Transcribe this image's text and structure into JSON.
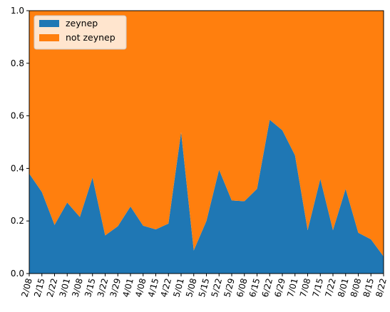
{
  "chart_data": {
    "type": "area",
    "stacked": true,
    "normalized": true,
    "title": "",
    "xlabel": "",
    "ylabel": "",
    "ylim": [
      0,
      1
    ],
    "yticks": [
      "0.0",
      "0.2",
      "0.4",
      "0.6",
      "0.8",
      "1.0"
    ],
    "grid": false,
    "legend_position": "upper left",
    "categories": [
      "2/08",
      "2/15",
      "2/22",
      "3/01",
      "3/08",
      "3/15",
      "3/22",
      "3/29",
      "4/01",
      "4/08",
      "4/15",
      "4/22",
      "5/01",
      "5/08",
      "5/15",
      "5/22",
      "5/29",
      "6/08",
      "6/15",
      "6/22",
      "6/29",
      "7/01",
      "7/08",
      "7/15",
      "7/22",
      "8/01",
      "8/08",
      "8/15",
      "8/22"
    ],
    "series": [
      {
        "name": "zeynep",
        "color": "#1f77b4",
        "values": [
          0.38,
          0.31,
          0.185,
          0.27,
          0.215,
          0.365,
          0.145,
          0.18,
          0.255,
          0.182,
          0.168,
          0.19,
          0.538,
          0.088,
          0.2,
          0.395,
          0.278,
          0.275,
          0.322,
          0.585,
          0.545,
          0.45,
          0.165,
          0.36,
          0.165,
          0.322,
          0.155,
          0.13,
          0.065
        ]
      },
      {
        "name": "not zeynep",
        "color": "#ff7f0e",
        "values": [
          0.62,
          0.69,
          0.815,
          0.73,
          0.785,
          0.635,
          0.855,
          0.82,
          0.745,
          0.818,
          0.832,
          0.81,
          0.462,
          0.912,
          0.8,
          0.605,
          0.722,
          0.725,
          0.678,
          0.415,
          0.455,
          0.55,
          0.835,
          0.64,
          0.835,
          0.678,
          0.845,
          0.87,
          0.935
        ]
      }
    ]
  }
}
